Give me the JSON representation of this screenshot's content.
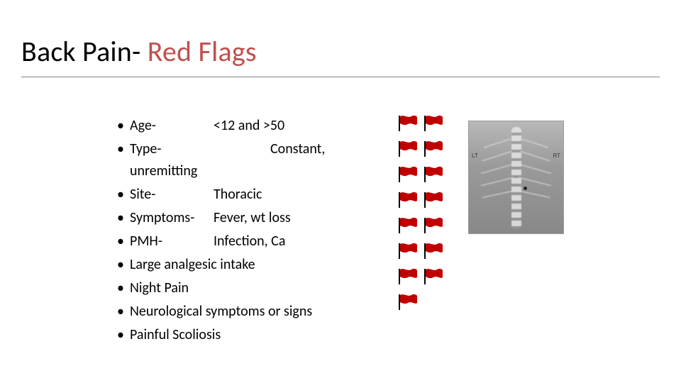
{
  "title": {
    "part1": "Back Pain- ",
    "part2": "Red Flags",
    "color_black": "#000000",
    "color_red": "#c0504d",
    "fontsize": 40
  },
  "underline_color": "#808080",
  "bullets": [
    {
      "label": "Age-",
      "value": "<12 and >50",
      "label_width": 118
    },
    {
      "label": "Type-",
      "value": "Constant, unremitting",
      "label_width": 198,
      "wrap_after_value_word": 1
    },
    {
      "label": "Site-",
      "value": "Thoracic",
      "label_width": 118
    },
    {
      "label": "Symptoms-",
      "value": "Fever, wt loss",
      "label_width": 118
    },
    {
      "label": "PMH-",
      "value": "Infection, Ca",
      "label_width": 118
    },
    {
      "label": "Large analgesic intake",
      "value": "",
      "label_width": 0
    },
    {
      "label": "Night Pain",
      "value": "",
      "label_width": 0
    },
    {
      "label": "Neurological symptoms or signs",
      "value": "",
      "label_width": 0
    },
    {
      "label": "Painful Scoliosis",
      "value": "",
      "label_width": 0
    }
  ],
  "bullet_fontsize": 20,
  "flags": {
    "rows": [
      2,
      2,
      2,
      2,
      2,
      2,
      2,
      1
    ],
    "color": "#c00000",
    "pole_color": "#000000",
    "width": 30,
    "height": 24
  },
  "xray": {
    "label_left": "LT",
    "label_right": "RT"
  }
}
